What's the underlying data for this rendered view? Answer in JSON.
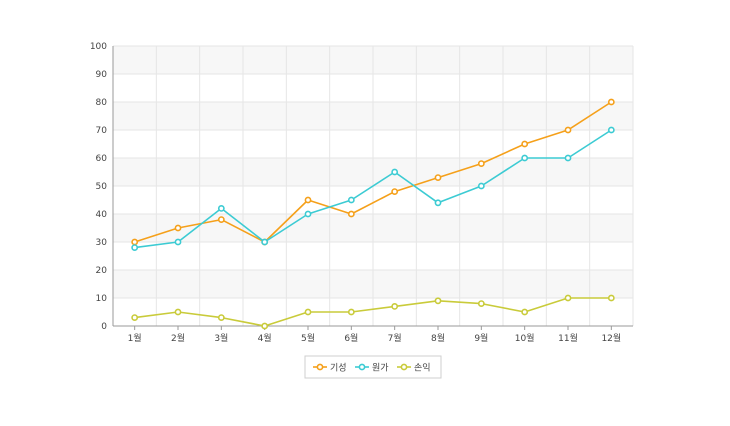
{
  "chart_data": {
    "type": "line",
    "title": "",
    "xlabel": "",
    "ylabel": "",
    "categories": [
      "1월",
      "2월",
      "3월",
      "4월",
      "5월",
      "6월",
      "7월",
      "8월",
      "9월",
      "10월",
      "11월",
      "12월"
    ],
    "ylim": [
      0,
      100
    ],
    "yticks": [
      0,
      10,
      20,
      30,
      40,
      50,
      60,
      70,
      80,
      90,
      100
    ],
    "grid": true,
    "legend_position": "bottom-center",
    "series": [
      {
        "name": "기성",
        "color": "#f5a01a",
        "values": [
          30,
          35,
          38,
          30,
          45,
          40,
          48,
          53,
          58,
          65,
          70,
          80
        ]
      },
      {
        "name": "원가",
        "color": "#3ccbd3",
        "values": [
          28,
          30,
          42,
          30,
          40,
          45,
          55,
          44,
          50,
          60,
          60,
          70
        ]
      },
      {
        "name": "손익",
        "color": "#c9cb3a",
        "values": [
          3,
          5,
          3,
          0,
          5,
          5,
          7,
          9,
          8,
          5,
          10,
          10
        ]
      }
    ]
  }
}
